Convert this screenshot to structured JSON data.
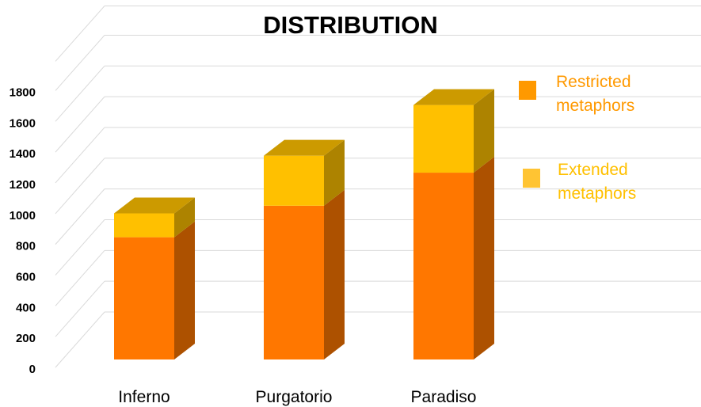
{
  "chart_data": {
    "type": "bar",
    "stacked": true,
    "three_d": true,
    "title": "DISTRIBUTION",
    "xlabel": "",
    "ylabel": "",
    "categories": [
      "Inferno",
      "Purgatorio",
      "Paradiso"
    ],
    "series": [
      {
        "name": "Restricted metaphors",
        "values": [
          795,
          1000,
          1215
        ],
        "color": "#FF7700"
      },
      {
        "name": "Extended metaphors",
        "values": [
          155,
          325,
          440
        ],
        "color": "#FFC000"
      }
    ],
    "ylim": [
      0,
      1800
    ],
    "yticks": [
      0,
      200,
      400,
      600,
      800,
      1000,
      1200,
      1400,
      1600,
      1800
    ],
    "grid": true,
    "legend_position": "right",
    "legend": [
      {
        "line1": "Restricted",
        "line2": "metaphors",
        "color": "#FF9900",
        "text_color": "#FF9900"
      },
      {
        "line1": "Extended",
        "line2": "metaphors",
        "color": "#FFC433",
        "text_color": "#FFC000"
      }
    ]
  }
}
